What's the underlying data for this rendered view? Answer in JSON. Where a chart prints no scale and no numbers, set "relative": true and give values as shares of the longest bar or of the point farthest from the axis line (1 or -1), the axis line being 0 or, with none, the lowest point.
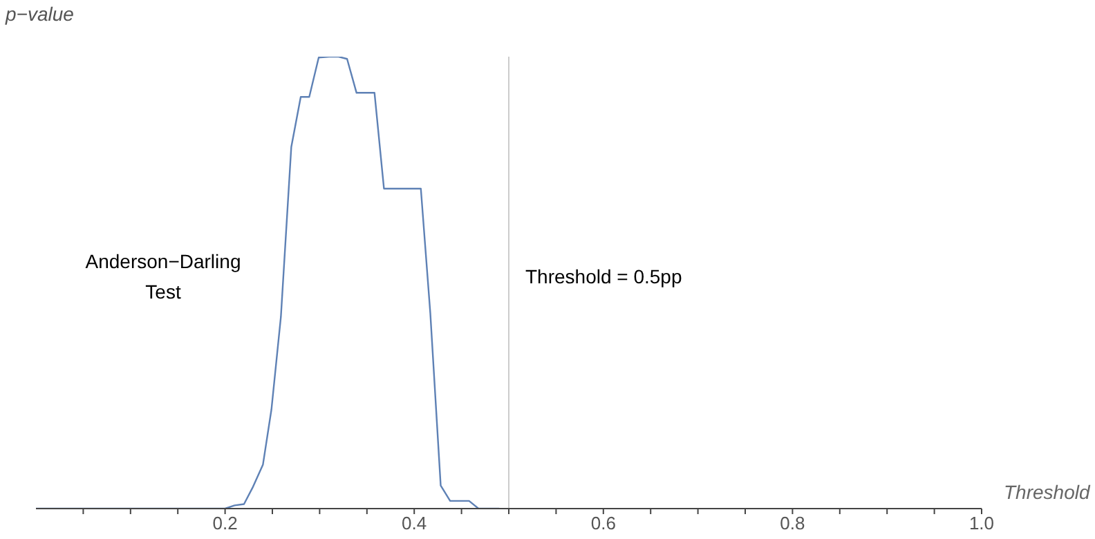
{
  "chart_data": {
    "type": "line",
    "relative": true,
    "xlabel": "Threshold",
    "ylabel": "p−value",
    "annotations": [
      "Anderson−Darling Test"
    ],
    "x": [
      0,
      0.1,
      0.2,
      0.21,
      0.22,
      0.229,
      0.24,
      0.249,
      0.259,
      0.27,
      0.28,
      0.289,
      0.299,
      0.31,
      0.32,
      0.329,
      0.339,
      0.358,
      0.368,
      0.407,
      0.417,
      0.428,
      0.438,
      0.458,
      0.468,
      0.49
    ],
    "series": [
      {
        "color": "#5e81b5",
        "values": [
          0,
          0,
          0,
          0.007,
          0.01,
          0.046,
          0.097,
          0.219,
          0.424,
          0.8,
          0.911,
          0.911,
          0.998,
          1,
          1,
          0.995,
          0.92,
          0.92,
          0.708,
          0.708,
          0.433,
          0.051,
          0.017,
          0.017,
          0,
          0
        ]
      }
    ],
    "xlim": [
      0,
      1
    ],
    "xticks": [
      {
        "value": 0.05,
        "label": null
      },
      {
        "value": 0.1,
        "label": null
      },
      {
        "value": 0.15,
        "label": null
      },
      0.2,
      {
        "value": 0.25,
        "label": null
      },
      {
        "value": 0.3,
        "label": null
      },
      {
        "value": 0.35,
        "label": null
      },
      0.4,
      {
        "value": 0.45,
        "label": null
      },
      {
        "value": 0.5,
        "label": null
      },
      {
        "value": 0.55,
        "label": null
      },
      0.6,
      {
        "value": 0.65,
        "label": null
      },
      {
        "value": 0.7,
        "label": null
      },
      {
        "value": 0.75,
        "label": null
      },
      0.8,
      {
        "value": 0.85,
        "label": null
      },
      {
        "value": 0.9,
        "label": null
      },
      {
        "value": 0.95,
        "label": null
      },
      {
        "value": 1,
        "label": "1.0"
      }
    ],
    "ref_lines": [
      {
        "axis": "x",
        "value": 0.5,
        "label": "Threshold = 0.5pp",
        "color": "#cccccc"
      }
    ],
    "grid": false,
    "legend": false
  }
}
